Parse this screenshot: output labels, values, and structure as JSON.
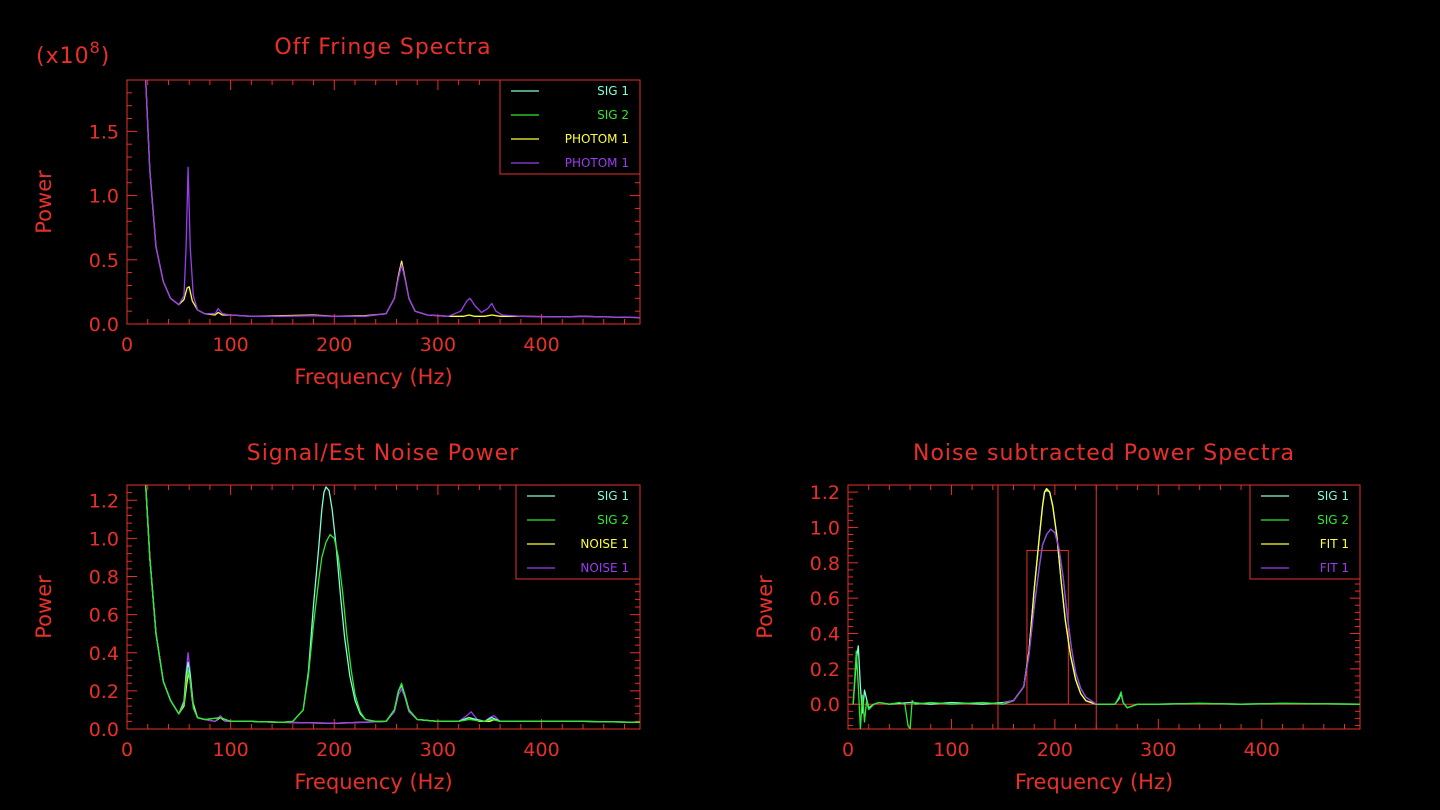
{
  "colors": {
    "background": "#000000",
    "axes": "#e8302a",
    "SIG 1": "#7fffd4",
    "SIG 2": "#2ee82e",
    "yellow": "#ffff3a",
    "purple": "#9b3cf0"
  },
  "chart_data": [
    {
      "id": "off-fringe",
      "type": "line",
      "title": "Off Fringe Spectra",
      "multiplier": "(x10",
      "multiplier_exp": "8",
      "multiplier_close": ")",
      "xlabel": "Frequency (Hz)",
      "ylabel": "Power",
      "xlim": [
        0,
        495
      ],
      "ylim": [
        0,
        1.9
      ],
      "xticks": [
        0,
        100,
        200,
        300,
        400
      ],
      "yticks": [
        0.0,
        0.5,
        1.0,
        1.5
      ],
      "ytick_labels": [
        "0.0",
        "0.5",
        "1.0",
        "1.5"
      ],
      "legend": "top-right",
      "series": [
        {
          "name": "SIG 1",
          "color": "#7fffd4"
        },
        {
          "name": "SIG 2",
          "color": "#2ee82e"
        },
        {
          "name": "PHOTOM 1",
          "color": "#ffff3a"
        },
        {
          "name": "PHOTOM 1",
          "color": "#9b3cf0"
        }
      ],
      "lines": [
        {
          "color": "#ffff3a",
          "x": [
            18,
            22,
            28,
            35,
            42,
            50,
            55,
            58,
            60,
            63,
            68,
            75,
            85,
            88,
            92,
            100,
            120,
            150,
            180,
            200,
            230,
            250,
            258,
            262,
            265,
            268,
            272,
            278,
            290,
            310,
            325,
            330,
            335,
            345,
            352,
            360,
            380,
            420,
            440,
            460,
            495
          ],
          "y": [
            1.9,
            1.2,
            0.6,
            0.33,
            0.2,
            0.15,
            0.19,
            0.28,
            0.29,
            0.18,
            0.11,
            0.08,
            0.07,
            0.09,
            0.07,
            0.07,
            0.06,
            0.065,
            0.07,
            0.06,
            0.065,
            0.08,
            0.2,
            0.38,
            0.49,
            0.37,
            0.2,
            0.1,
            0.07,
            0.06,
            0.06,
            0.07,
            0.06,
            0.06,
            0.07,
            0.06,
            0.06,
            0.055,
            0.06,
            0.055,
            0.05
          ]
        },
        {
          "color": "#9b3cf0",
          "x": [
            18,
            22,
            28,
            35,
            42,
            50,
            55,
            57,
            59,
            61,
            64,
            68,
            75,
            85,
            88,
            92,
            100,
            120,
            150,
            180,
            200,
            230,
            250,
            258,
            262,
            265,
            268,
            272,
            278,
            290,
            310,
            322,
            328,
            331,
            336,
            342,
            348,
            352,
            356,
            362,
            380,
            420,
            440,
            460,
            495
          ],
          "y": [
            1.9,
            1.2,
            0.6,
            0.33,
            0.2,
            0.15,
            0.22,
            0.6,
            1.22,
            0.6,
            0.22,
            0.11,
            0.08,
            0.08,
            0.12,
            0.08,
            0.07,
            0.06,
            0.06,
            0.065,
            0.06,
            0.06,
            0.08,
            0.2,
            0.36,
            0.46,
            0.36,
            0.2,
            0.1,
            0.07,
            0.06,
            0.1,
            0.18,
            0.2,
            0.14,
            0.09,
            0.12,
            0.16,
            0.1,
            0.07,
            0.06,
            0.055,
            0.06,
            0.055,
            0.05
          ]
        }
      ]
    },
    {
      "id": "signal-noise",
      "type": "line",
      "title": "Signal/Est Noise Power",
      "xlabel": "Frequency (Hz)",
      "ylabel": "Power",
      "xlim": [
        0,
        495
      ],
      "ylim": [
        0,
        1.28
      ],
      "xticks": [
        0,
        100,
        200,
        300,
        400
      ],
      "yticks": [
        0.0,
        0.2,
        0.4,
        0.6,
        0.8,
        1.0,
        1.2
      ],
      "ytick_labels": [
        "0.0",
        "0.2",
        "0.4",
        "0.6",
        "0.8",
        "1.0",
        "1.2"
      ],
      "legend": "top-right",
      "series": [
        {
          "name": "SIG 1",
          "color": "#7fffd4"
        },
        {
          "name": "SIG 2",
          "color": "#2ee82e"
        },
        {
          "name": "NOISE 1",
          "color": "#ffff3a"
        },
        {
          "name": "NOISE 1",
          "color": "#9b3cf0"
        }
      ],
      "lines": [
        {
          "color": "#ffff3a",
          "x": [
            18,
            22,
            28,
            35,
            42,
            50,
            55,
            58,
            60,
            63,
            68,
            75,
            85,
            90,
            95,
            100,
            120,
            150,
            200,
            250,
            258,
            262,
            265,
            268,
            272,
            280,
            300,
            320,
            330,
            340,
            350,
            355,
            360,
            400,
            440,
            495
          ],
          "y": [
            1.28,
            0.9,
            0.5,
            0.25,
            0.15,
            0.08,
            0.12,
            0.25,
            0.3,
            0.15,
            0.06,
            0.05,
            0.04,
            0.06,
            0.04,
            0.04,
            0.04,
            0.035,
            0.03,
            0.04,
            0.1,
            0.2,
            0.23,
            0.18,
            0.1,
            0.05,
            0.04,
            0.04,
            0.06,
            0.04,
            0.04,
            0.05,
            0.04,
            0.04,
            0.04,
            0.035
          ]
        },
        {
          "color": "#9b3cf0",
          "x": [
            18,
            22,
            28,
            35,
            42,
            50,
            55,
            57,
            59,
            61,
            64,
            68,
            75,
            85,
            90,
            95,
            100,
            120,
            150,
            200,
            250,
            258,
            262,
            265,
            268,
            272,
            280,
            300,
            320,
            328,
            332,
            338,
            345,
            350,
            354,
            360,
            400,
            440,
            495
          ],
          "y": [
            1.28,
            0.9,
            0.5,
            0.25,
            0.15,
            0.08,
            0.15,
            0.3,
            0.4,
            0.3,
            0.12,
            0.06,
            0.05,
            0.04,
            0.07,
            0.04,
            0.04,
            0.04,
            0.035,
            0.03,
            0.04,
            0.09,
            0.18,
            0.21,
            0.17,
            0.09,
            0.05,
            0.04,
            0.04,
            0.07,
            0.09,
            0.05,
            0.04,
            0.06,
            0.07,
            0.04,
            0.04,
            0.04,
            0.035
          ]
        },
        {
          "color": "#7fffd4",
          "x": [
            18,
            22,
            28,
            35,
            42,
            50,
            55,
            57,
            59,
            61,
            64,
            68,
            75,
            90,
            100,
            120,
            150,
            160,
            170,
            175,
            180,
            185,
            188,
            190,
            192,
            195,
            198,
            202,
            206,
            210,
            215,
            220,
            225,
            230,
            240,
            250,
            258,
            262,
            265,
            268,
            272,
            280,
            300,
            320,
            330,
            345,
            352,
            360,
            400,
            440,
            495
          ],
          "y": [
            1.28,
            0.9,
            0.5,
            0.25,
            0.15,
            0.08,
            0.14,
            0.28,
            0.35,
            0.28,
            0.12,
            0.06,
            0.05,
            0.06,
            0.04,
            0.04,
            0.035,
            0.04,
            0.1,
            0.3,
            0.65,
            0.95,
            1.15,
            1.24,
            1.27,
            1.25,
            1.15,
            0.95,
            0.7,
            0.48,
            0.28,
            0.15,
            0.08,
            0.05,
            0.04,
            0.04,
            0.1,
            0.2,
            0.23,
            0.18,
            0.1,
            0.05,
            0.04,
            0.04,
            0.06,
            0.04,
            0.06,
            0.04,
            0.04,
            0.04,
            0.035
          ]
        },
        {
          "color": "#2ee82e",
          "x": [
            18,
            22,
            28,
            35,
            42,
            50,
            55,
            57,
            59,
            61,
            64,
            68,
            75,
            90,
            100,
            120,
            150,
            160,
            170,
            175,
            180,
            185,
            188,
            192,
            196,
            200,
            204,
            208,
            212,
            216,
            220,
            225,
            230,
            240,
            250,
            258,
            262,
            265,
            268,
            272,
            280,
            300,
            320,
            330,
            345,
            352,
            360,
            400,
            440,
            495
          ],
          "y": [
            1.28,
            0.9,
            0.5,
            0.25,
            0.15,
            0.08,
            0.13,
            0.25,
            0.31,
            0.25,
            0.11,
            0.06,
            0.05,
            0.06,
            0.04,
            0.04,
            0.035,
            0.04,
            0.1,
            0.28,
            0.55,
            0.78,
            0.9,
            0.98,
            1.02,
            1.0,
            0.9,
            0.72,
            0.5,
            0.32,
            0.18,
            0.09,
            0.05,
            0.04,
            0.04,
            0.1,
            0.2,
            0.24,
            0.18,
            0.1,
            0.05,
            0.04,
            0.04,
            0.05,
            0.04,
            0.05,
            0.04,
            0.04,
            0.04,
            0.035
          ]
        }
      ]
    },
    {
      "id": "noise-subtracted",
      "type": "line",
      "title": "Noise subtracted Power Spectra",
      "xlabel": "Frequency (Hz)",
      "ylabel": "Power",
      "xlim": [
        0,
        495
      ],
      "ylim": [
        -0.14,
        1.24
      ],
      "xticks": [
        0,
        100,
        200,
        300,
        400
      ],
      "yticks": [
        0.0,
        0.2,
        0.4,
        0.6,
        0.8,
        1.0,
        1.2
      ],
      "ytick_labels": [
        "0.0",
        "0.2",
        "0.4",
        "0.6",
        "0.8",
        "1.0",
        "1.2"
      ],
      "legend": "top-right",
      "series": [
        {
          "name": "SIG 1",
          "color": "#7fffd4"
        },
        {
          "name": "SIG 2",
          "color": "#2ee82e"
        },
        {
          "name": "FIT 1",
          "color": "#ffff3a"
        },
        {
          "name": "FIT 1",
          "color": "#9b3cf0"
        }
      ],
      "hlines": [
        0.0
      ],
      "boxes": [
        {
          "x0": 145,
          "x1": 240,
          "y0": -0.14,
          "y1": 1.24
        },
        {
          "x0": 173,
          "x1": 213,
          "y0": 0.0,
          "y1": 0.87
        }
      ],
      "lines": [
        {
          "color": "#7fffd4",
          "x": [
            5,
            8,
            10,
            12,
            14,
            16,
            20,
            25,
            30,
            40,
            60,
            80,
            100,
            130,
            150,
            160,
            170,
            175,
            180,
            185,
            188,
            190,
            192,
            195,
            198,
            202,
            206,
            210,
            215,
            220,
            225,
            230,
            240,
            258,
            262,
            264,
            266,
            270,
            280,
            300,
            340,
            380,
            420,
            495
          ],
          "y": [
            0.0,
            0.25,
            0.33,
            0.1,
            -0.05,
            0.08,
            -0.02,
            0.0,
            0.01,
            0.0,
            0.01,
            0.0,
            0.01,
            0.0,
            0.01,
            0.02,
            0.1,
            0.3,
            0.65,
            0.95,
            1.12,
            1.2,
            1.21,
            1.2,
            1.12,
            0.95,
            0.7,
            0.48,
            0.28,
            0.14,
            0.06,
            0.02,
            0.0,
            0.0,
            0.03,
            0.06,
            0.01,
            -0.02,
            0.0,
            0.0,
            0.005,
            0.0,
            0.005,
            0.0
          ]
        },
        {
          "color": "#2ee82e",
          "x": [
            5,
            8,
            10,
            12,
            14,
            16,
            18,
            20,
            25,
            30,
            40,
            50,
            55,
            58,
            60,
            62,
            65,
            80,
            100,
            130,
            150,
            160,
            170,
            175,
            180,
            185,
            188,
            192,
            196,
            200,
            204,
            208,
            212,
            216,
            220,
            225,
            230,
            240,
            258,
            262,
            264,
            266,
            270,
            280,
            300,
            340,
            380,
            420,
            495
          ],
          "y": [
            0.0,
            0.3,
            0.1,
            -0.14,
            0.05,
            -0.1,
            0.02,
            -0.03,
            0.0,
            0.01,
            0.0,
            0.01,
            0.0,
            -0.12,
            -0.14,
            0.02,
            0.0,
            0.01,
            0.0,
            0.01,
            0.0,
            0.02,
            0.1,
            0.28,
            0.55,
            0.78,
            0.9,
            0.96,
            0.99,
            0.97,
            0.88,
            0.72,
            0.5,
            0.32,
            0.18,
            0.09,
            0.04,
            0.0,
            0.0,
            0.04,
            0.07,
            0.01,
            -0.02,
            0.0,
            0.0,
            0.005,
            0.0,
            0.005,
            0.0
          ]
        },
        {
          "color": "#ffff3a",
          "x": [
            150,
            160,
            170,
            175,
            180,
            185,
            188,
            190,
            192,
            195,
            198,
            202,
            206,
            210,
            215,
            220,
            225,
            230,
            240
          ],
          "y": [
            0.01,
            0.02,
            0.1,
            0.3,
            0.65,
            0.95,
            1.12,
            1.2,
            1.22,
            1.2,
            1.12,
            0.95,
            0.7,
            0.48,
            0.28,
            0.14,
            0.06,
            0.02,
            0.0
          ]
        },
        {
          "color": "#9b3cf0",
          "x": [
            150,
            160,
            170,
            175,
            180,
            185,
            188,
            192,
            196,
            200,
            204,
            208,
            212,
            216,
            220,
            225,
            230,
            240
          ],
          "y": [
            0.01,
            0.02,
            0.1,
            0.28,
            0.55,
            0.78,
            0.9,
            0.96,
            0.99,
            0.97,
            0.88,
            0.72,
            0.5,
            0.32,
            0.18,
            0.09,
            0.04,
            0.0
          ]
        }
      ]
    }
  ]
}
